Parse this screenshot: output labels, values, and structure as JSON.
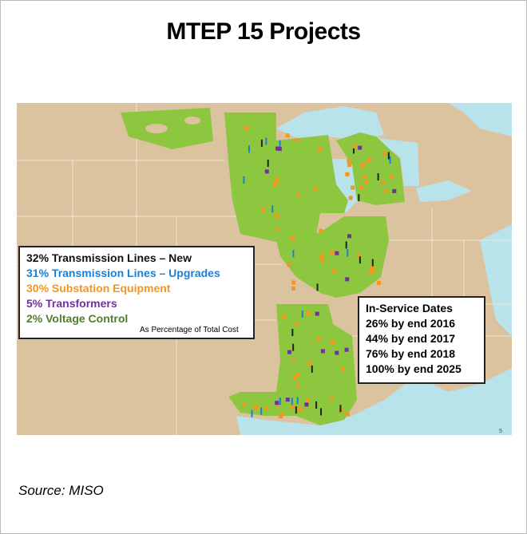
{
  "title": "MTEP 15 Projects",
  "legend": {
    "items": [
      "32% Transmission Lines – New",
      "31% Transmission Lines – Upgrades",
      "30% Substation Equipment",
      "5% Transformers",
      "2% Voltage Control"
    ],
    "note": "As Percentage of Total Cost"
  },
  "in_service": {
    "title": "In-Service Dates",
    "items": [
      "26% by end 2016",
      "44% by end 2017",
      "76% by end 2018",
      "100% by end 2025"
    ]
  },
  "page_number": "5",
  "source": "Source: MISO"
}
